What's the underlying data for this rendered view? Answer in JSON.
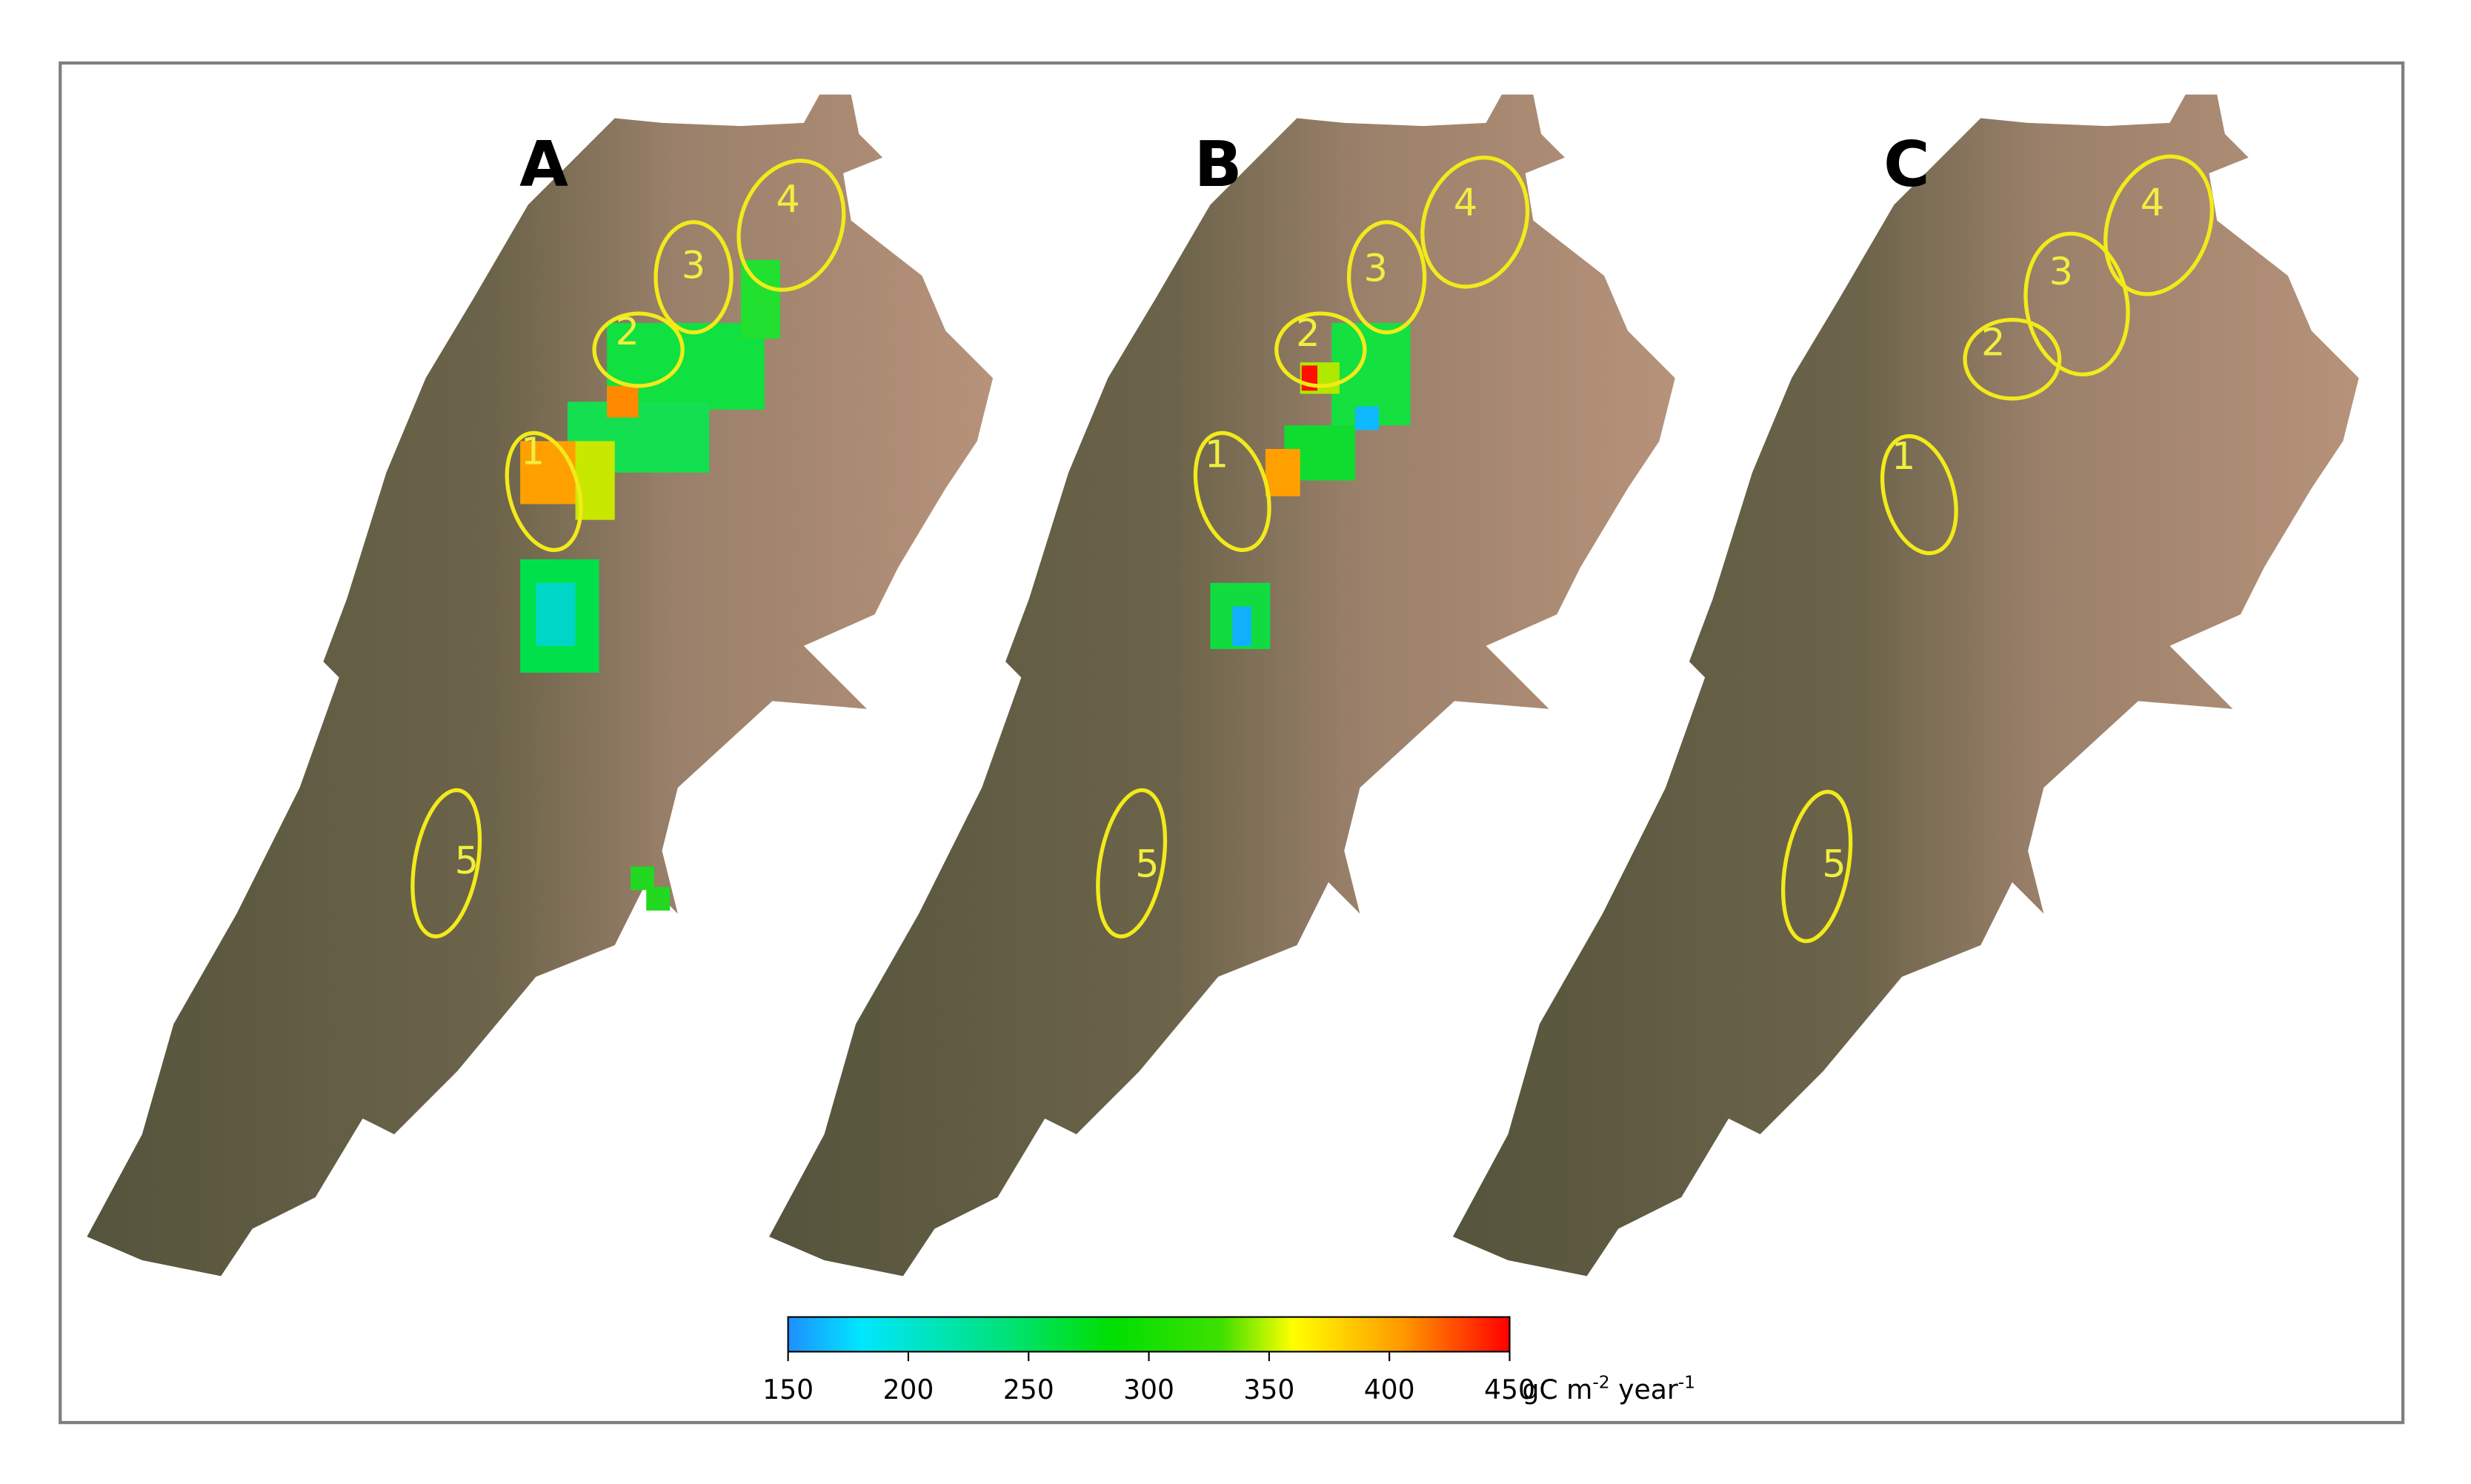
{
  "panels": [
    {
      "label": "A",
      "regions": [
        "1",
        "2",
        "3",
        "4",
        "5"
      ]
    },
    {
      "label": "B",
      "regions": [
        "1",
        "2",
        "3",
        "4",
        "5"
      ]
    },
    {
      "label": "C",
      "regions": [
        "1",
        "2",
        "3",
        "4",
        "5"
      ]
    }
  ],
  "colorbar": {
    "lim": [
      150,
      450
    ],
    "ticks": [
      150,
      200,
      250,
      300,
      350,
      400,
      450
    ],
    "unit": [
      "gC m",
      "-2",
      " year",
      "-1"
    ]
  }
}
